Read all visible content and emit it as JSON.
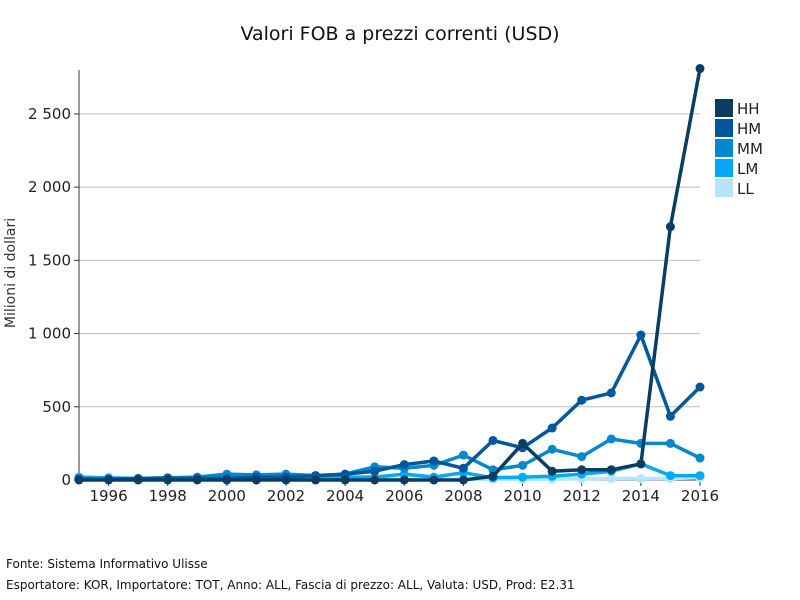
{
  "chart_data": {
    "type": "line",
    "title": "Valori FOB a prezzi correnti (USD)",
    "xlabel": "",
    "ylabel": "Milioni di dollari",
    "x": [
      1995,
      1996,
      1997,
      1998,
      1999,
      2000,
      2001,
      2002,
      2003,
      2004,
      2005,
      2006,
      2007,
      2008,
      2009,
      2010,
      2011,
      2012,
      2013,
      2014,
      2015,
      2016
    ],
    "xticks": [
      1996,
      1998,
      2000,
      2002,
      2004,
      2006,
      2008,
      2010,
      2012,
      2014,
      2016
    ],
    "xtick_labels": [
      "1996",
      "1998",
      "2000",
      "2002",
      "2004",
      "2006",
      "2008",
      "2010",
      "2012",
      "2014",
      "2016"
    ],
    "xlim": [
      1995,
      2016
    ],
    "ylim": [
      0,
      2800
    ],
    "yticks": [
      0,
      500,
      1000,
      1500,
      2000,
      2500
    ],
    "ytick_labels": [
      "0",
      "500",
      "1 000",
      "1 500",
      "2 000",
      "2 500"
    ],
    "grid": true,
    "legend_position": "right",
    "series": [
      {
        "name": "LL",
        "color": "#b3e5fc",
        "values": [
          5,
          5,
          5,
          5,
          5,
          5,
          5,
          5,
          5,
          5,
          5,
          5,
          5,
          5,
          5,
          5,
          5,
          8,
          10,
          10,
          10,
          15
        ]
      },
      {
        "name": "LM",
        "color": "#03a9f4",
        "values": [
          20,
          15,
          10,
          15,
          10,
          15,
          15,
          15,
          15,
          20,
          20,
          40,
          20,
          50,
          15,
          20,
          25,
          40,
          60,
          110,
          30,
          30
        ]
      },
      {
        "name": "MM",
        "color": "#0288d1",
        "values": [
          10,
          5,
          10,
          15,
          20,
          40,
          35,
          40,
          30,
          40,
          90,
          80,
          100,
          170,
          70,
          100,
          210,
          160,
          280,
          250,
          250,
          150
        ]
      },
      {
        "name": "HM",
        "color": "#01579b",
        "values": [
          5,
          5,
          10,
          10,
          10,
          10,
          20,
          20,
          30,
          40,
          60,
          105,
          130,
          80,
          270,
          220,
          355,
          545,
          595,
          990,
          435,
          635
        ]
      },
      {
        "name": "HH",
        "color": "#0a3d62",
        "values": [
          0,
          0,
          0,
          0,
          0,
          0,
          0,
          0,
          0,
          0,
          0,
          0,
          0,
          0,
          25,
          250,
          60,
          70,
          70,
          110,
          1730,
          2810
        ]
      }
    ],
    "legend_order": [
      "HH",
      "HM",
      "MM",
      "LM",
      "LL"
    ]
  },
  "footer": {
    "source": "Fonte: Sistema Informativo Ulisse",
    "details": "Esportatore: KOR, Importatore: TOT, Anno: ALL, Fascia di prezzo: ALL, Valuta: USD, Prod: E2.31"
  }
}
